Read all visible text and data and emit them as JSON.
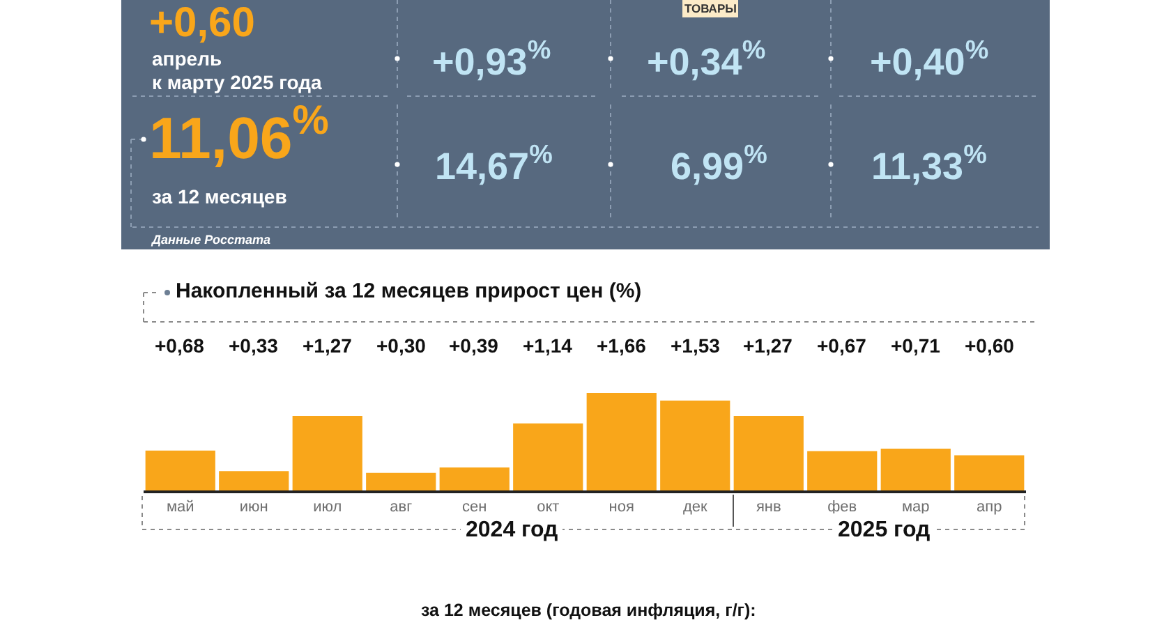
{
  "chart_data": [
    {
      "type": "other",
      "annotations": [
        "+0,60",
        "апрель",
        "к марту 2025 года",
        "ТОВАРЫ",
        "+0,93$^{%}$",
        "+0,34$^{%}$",
        "+0,40$^{%}$",
        "11,06$^{%}$",
        "за 12 месяцев",
        "14,67$^{%}$",
        "6,99$^{%}$",
        "11,33$^{%}$",
        "Данные Росстата"
      ]
    },
    {
      "type": "bar",
      "title": "Накопленный за 12 месяцев прирост цен (%)",
      "categories": [
        "май",
        "июн",
        "июл",
        "авг",
        "сен",
        "окт",
        "ноя",
        "дек",
        "янв",
        "фев",
        "мар",
        "апр"
      ],
      "values": [
        0.68,
        0.33,
        1.27,
        0.3,
        0.39,
        1.14,
        1.66,
        1.53,
        1.27,
        0.67,
        0.71,
        0.6
      ],
      "value_labels": [
        "+0,68",
        "+0,33",
        "+1,27",
        "+0,30",
        "+0,39",
        "+1,14",
        "+1,66",
        "+1,53",
        "+1,27",
        "+0,67",
        "+0,71",
        "+0,60"
      ],
      "color": "#f9a61a",
      "tick_labels": "x",
      "annotations": [
        "2024 год",
        "2025 год",
        "за 12 месяцев (годовая инфляция, г/г):"
      ]
    }
  ]
}
